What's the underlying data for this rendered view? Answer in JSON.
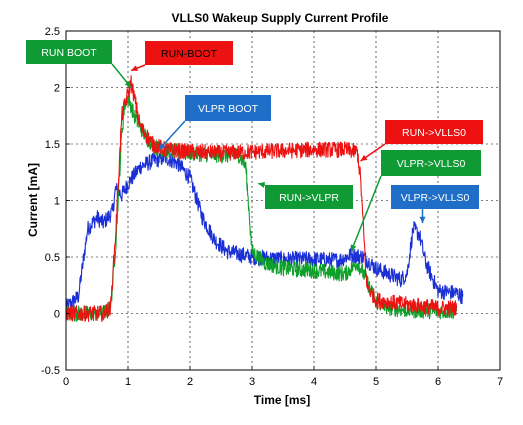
{
  "chart_data": {
    "type": "line",
    "title": "VLLS0 Wakeup Supply Current Profile",
    "xlabel": "Time [ms]",
    "ylabel": "Current [mA]",
    "xlim": [
      0,
      7
    ],
    "ylim": [
      -0.5,
      2.5
    ],
    "x_ticks": [
      "0",
      "1",
      "2",
      "3",
      "4",
      "5",
      "6",
      "7"
    ],
    "y_ticks": [
      "-0.5",
      "0",
      "0.5",
      "1",
      "1.5",
      "2",
      "2.5"
    ],
    "grid": true,
    "series": [
      {
        "color": "#1a2fd6",
        "x": [
          0,
          0.2,
          0.3,
          0.35,
          0.5,
          0.6,
          0.75,
          0.8,
          0.9,
          1.0,
          1.2,
          1.4,
          1.6,
          1.8,
          2.0,
          2.2,
          2.4,
          2.6,
          3.0,
          3.5,
          4.0,
          4.4,
          4.6,
          4.8,
          5.0,
          5.2,
          5.4,
          5.5,
          5.6,
          5.7,
          5.8,
          6.0,
          6.3,
          6.4
        ],
        "y": [
          0.05,
          0.15,
          0.55,
          0.75,
          0.85,
          0.8,
          0.9,
          1.1,
          1.05,
          1.15,
          1.3,
          1.35,
          1.38,
          1.33,
          1.2,
          0.85,
          0.65,
          0.55,
          0.5,
          0.48,
          0.48,
          0.47,
          0.52,
          0.5,
          0.4,
          0.35,
          0.3,
          0.35,
          0.75,
          0.7,
          0.45,
          0.2,
          0.18,
          0.15
        ]
      },
      {
        "color": "#0fa02a",
        "x": [
          0,
          0.3,
          0.6,
          0.72,
          0.8,
          0.9,
          0.95,
          1.0,
          1.1,
          1.3,
          1.5,
          2.0,
          2.5,
          2.8,
          2.9,
          3.0,
          3.2,
          3.5,
          4.0,
          4.5,
          4.7,
          4.8,
          5.0,
          5.2,
          5.5,
          6.0,
          6.3
        ],
        "y": [
          0.0,
          0.0,
          0.0,
          0.05,
          0.6,
          1.6,
          1.85,
          1.92,
          1.75,
          1.55,
          1.45,
          1.42,
          1.4,
          1.4,
          1.3,
          0.55,
          0.45,
          0.4,
          0.38,
          0.35,
          0.45,
          0.35,
          0.1,
          0.05,
          0.03,
          0.02,
          0.02
        ]
      },
      {
        "color": "#ee1111",
        "x": [
          0,
          0.3,
          0.6,
          0.72,
          0.8,
          0.9,
          1.0,
          1.05,
          1.2,
          1.4,
          1.6,
          2.0,
          2.5,
          3.0,
          3.5,
          4.0,
          4.5,
          4.7,
          4.75,
          4.85,
          5.0,
          5.2,
          5.5,
          6.0,
          6.3
        ],
        "y": [
          0.0,
          0.0,
          0.0,
          0.05,
          0.7,
          1.75,
          1.95,
          2.05,
          1.65,
          1.5,
          1.45,
          1.43,
          1.42,
          1.43,
          1.44,
          1.45,
          1.45,
          1.43,
          1.2,
          0.25,
          0.12,
          0.1,
          0.08,
          0.05,
          0.05
        ]
      }
    ],
    "annotations": [
      {
        "text": "RUN BOOT",
        "fill": "#109a35",
        "text_color": "#ffffff",
        "ax": 1.05,
        "ay": 2.0
      },
      {
        "text": "RUN-BOOT",
        "fill": "#ee1111",
        "text_color": "#000000",
        "ax": 1.05,
        "ay": 2.15
      },
      {
        "text": "VLPR BOOT",
        "fill": "#1f6fc8",
        "text_color": "#ffffff",
        "ax": 1.5,
        "ay": 1.45
      },
      {
        "text": "RUN->VLLS0",
        "fill": "#ee1111",
        "text_color": "#ffffff",
        "ax": 4.75,
        "ay": 1.35
      },
      {
        "text": "VLPR->VLLS0",
        "fill": "#109a35",
        "text_color": "#ffffff",
        "ax": 4.6,
        "ay": 0.55
      },
      {
        "text": "RUN->VLPR",
        "fill": "#109a35",
        "text_color": "#ffffff",
        "ax": 3.1,
        "ay": 1.15
      },
      {
        "text": "VLPR->VLLS0",
        "fill": "#1f6fc8",
        "text_color": "#ffffff",
        "ax": 5.75,
        "ay": 0.8
      }
    ]
  }
}
